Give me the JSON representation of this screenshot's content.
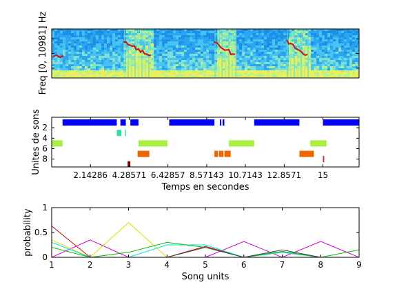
{
  "chart_data": [
    {
      "type": "heatmap",
      "title": "",
      "xlabel": "",
      "ylabel": "Freq [0, 10981] Hz",
      "colormap": "jet",
      "bursts": [
        {
          "start": 4.0,
          "end": 5.5
        },
        {
          "start": 9.0,
          "end": 10.2
        },
        {
          "start": 13.0,
          "end": 14.2
        }
      ]
    },
    {
      "type": "bar",
      "title": "",
      "xlabel": "Temps en secondes",
      "ylabel": "Unites de sons",
      "xlim": [
        0,
        17
      ],
      "ylim": [
        0,
        9.5
      ],
      "x_ticks": [
        2.14286,
        4.28571,
        6.42857,
        8.57143,
        10.7143,
        12.8571,
        15
      ],
      "x_tick_labels": [
        "2.14286",
        "4.28571",
        "6.42857",
        "8.57143",
        "10.7143",
        "12.8571",
        "15"
      ],
      "y_ticks": [
        2,
        4,
        6,
        8
      ],
      "y_tick_labels": [
        "2",
        "4",
        "6",
        "8"
      ],
      "segments": [
        {
          "unit": 1,
          "start": 0.6,
          "end": 3.6,
          "color": "#0000ff"
        },
        {
          "unit": 1,
          "start": 3.8,
          "end": 4.1,
          "color": "#0000ff"
        },
        {
          "unit": 1,
          "start": 4.35,
          "end": 4.8,
          "color": "#0000ff"
        },
        {
          "unit": 1,
          "start": 6.5,
          "end": 9.0,
          "color": "#0000ff"
        },
        {
          "unit": 1,
          "start": 9.3,
          "end": 9.38,
          "color": "#0000ff"
        },
        {
          "unit": 1,
          "start": 9.45,
          "end": 9.55,
          "color": "#0000ff"
        },
        {
          "unit": 1,
          "start": 11.2,
          "end": 13.7,
          "color": "#0000ff"
        },
        {
          "unit": 1,
          "start": 15.0,
          "end": 17.0,
          "color": "#0000ff"
        },
        {
          "unit": 3,
          "start": 3.6,
          "end": 3.85,
          "color": "#33ddaa"
        },
        {
          "unit": 3,
          "start": 4.05,
          "end": 4.08,
          "color": "#33ddaa"
        },
        {
          "unit": 5,
          "start": 0.0,
          "end": 0.6,
          "color": "#aaee44"
        },
        {
          "unit": 5,
          "start": 4.8,
          "end": 6.4,
          "color": "#aaee44"
        },
        {
          "unit": 5,
          "start": 9.8,
          "end": 11.2,
          "color": "#aaee44"
        },
        {
          "unit": 5,
          "start": 14.3,
          "end": 15.2,
          "color": "#aaee44"
        },
        {
          "unit": 7,
          "start": 4.75,
          "end": 5.4,
          "color": "#ee6600"
        },
        {
          "unit": 7,
          "start": 9.0,
          "end": 9.2,
          "color": "#ee6600"
        },
        {
          "unit": 7,
          "start": 9.25,
          "end": 9.5,
          "color": "#ee6600"
        },
        {
          "unit": 7,
          "start": 9.55,
          "end": 9.9,
          "color": "#ee6600"
        },
        {
          "unit": 7,
          "start": 13.7,
          "end": 14.5,
          "color": "#ee6600"
        },
        {
          "unit": 8,
          "start": 15.0,
          "end": 15.07,
          "color": "#cc2222"
        },
        {
          "unit": 9,
          "start": 4.2,
          "end": 4.35,
          "color": "#880000"
        }
      ]
    },
    {
      "type": "line",
      "title": "",
      "xlabel": "Song units",
      "ylabel": "probability",
      "xlim": [
        1,
        9
      ],
      "ylim": [
        0,
        1
      ],
      "x": [
        1,
        2,
        3,
        4,
        5,
        6,
        7,
        8,
        9
      ],
      "x_tick_labels": [
        "1",
        "2",
        "3",
        "4",
        "5",
        "6",
        "7",
        "8",
        "9"
      ],
      "y_ticks": [
        0,
        0.5,
        1
      ],
      "y_tick_labels": [
        "0",
        "0.5",
        "1"
      ],
      "series": [
        {
          "color": "#cc0000",
          "values": [
            0.63,
            0.0,
            0.0,
            0.0,
            0.22,
            0.0,
            0.1,
            0.0,
            0.0
          ]
        },
        {
          "color": "#cc00cc",
          "values": [
            0.0,
            0.35,
            0.0,
            0.0,
            0.0,
            0.32,
            0.0,
            0.32,
            0.0
          ]
        },
        {
          "color": "#dddd00",
          "values": [
            0.35,
            0.0,
            0.7,
            0.0,
            0.0,
            0.0,
            0.0,
            0.0,
            0.0
          ]
        },
        {
          "color": "#00dddd",
          "values": [
            0.3,
            0.0,
            0.0,
            0.25,
            0.25,
            0.0,
            0.1,
            0.0,
            0.0
          ]
        },
        {
          "color": "#00bb00",
          "values": [
            0.2,
            0.0,
            0.1,
            0.3,
            0.2,
            0.0,
            0.12,
            0.0,
            0.15
          ]
        },
        {
          "color": "#444444",
          "values": [
            0.0,
            0.0,
            0.0,
            0.0,
            0.2,
            0.0,
            0.15,
            0.0,
            0.0
          ]
        }
      ]
    }
  ]
}
